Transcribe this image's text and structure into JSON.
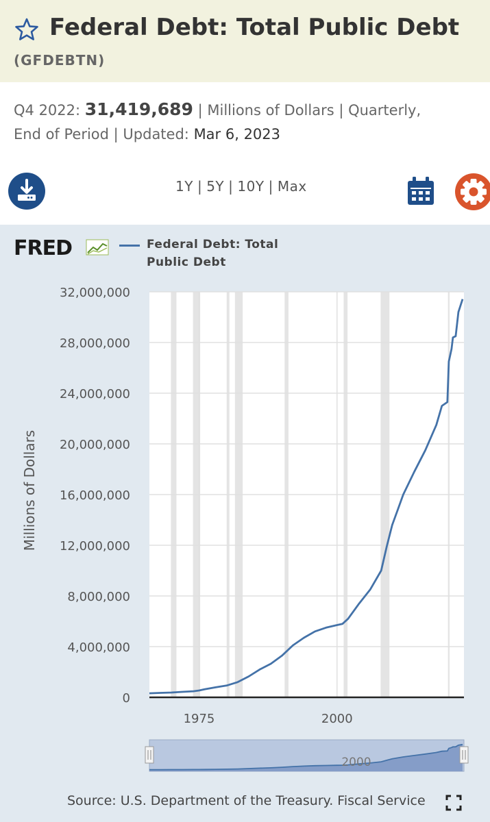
{
  "header": {
    "title": "Federal Debt: Total Public Debt",
    "series_id": "(GFDEBTN)",
    "bg_color": "#f2f2df",
    "star_icon": "star-outline-icon"
  },
  "meta": {
    "period_label": "Q4 2022:",
    "value": "31,419,689",
    "rest_line1": "| Millions of Dollars | Quarterly,",
    "rest_line2": "End of Period | Updated:",
    "updated": "Mar 6, 2023"
  },
  "toolbar": {
    "download_icon": "download-icon",
    "ranges": [
      "1Y",
      "5Y",
      "10Y",
      "Max"
    ],
    "calendar_icon": "calendar-icon",
    "settings_icon": "gear-icon"
  },
  "chart_data": {
    "type": "line",
    "logo_text": "FRED",
    "legend": [
      "Federal Debt: Total",
      "Public Debt"
    ],
    "series": [
      {
        "name": "Federal Debt: Total Public Debt",
        "color": "#4472a8",
        "x": [
          1966,
          1968,
          1970,
          1972,
          1974,
          1975,
          1976,
          1978,
          1980,
          1982,
          1984,
          1986,
          1988,
          1990,
          1992,
          1994,
          1996,
          1998,
          2000,
          2001,
          2002,
          2004,
          2006,
          2008,
          2009,
          2010,
          2011,
          2012,
          2014,
          2016,
          2018,
          2019,
          2020,
          2020.25,
          2020.75,
          2021,
          2021.5,
          2022,
          2022.75
        ],
        "y": [
          320000,
          350000,
          380000,
          430000,
          480000,
          540000,
          630000,
          790000,
          930000,
          1200000,
          1650000,
          2200000,
          2650000,
          3280000,
          4100000,
          4700000,
          5200000,
          5500000,
          5700000,
          5800000,
          6200000,
          7400000,
          8500000,
          10000000,
          11900000,
          13600000,
          14800000,
          16000000,
          17800000,
          19500000,
          21500000,
          23000000,
          23300000,
          26500000,
          27500000,
          28400000,
          28500000,
          30400000,
          31419689
        ]
      }
    ],
    "recessions": [
      [
        1969.9,
        1970.9
      ],
      [
        1973.9,
        1975.2
      ],
      [
        1980.0,
        1980.5
      ],
      [
        1981.5,
        1982.9
      ],
      [
        1990.5,
        1991.2
      ],
      [
        2001.2,
        2001.9
      ],
      [
        2007.9,
        2009.5
      ],
      [
        2020.1,
        2020.4
      ]
    ],
    "xlim": [
      1966,
      2023
    ],
    "ylim": [
      0,
      32000000
    ],
    "yticks": [
      0,
      4000000,
      8000000,
      12000000,
      16000000,
      20000000,
      24000000,
      28000000,
      32000000
    ],
    "ytick_labels": [
      "0",
      "4,000,000",
      "8,000,000",
      "12,000,000",
      "16,000,000",
      "20,000,000",
      "24,000,000",
      "28,000,000",
      "32,000,000"
    ],
    "xticks": [
      1975,
      2000
    ],
    "xtick_labels": [
      "1975",
      "2000"
    ],
    "ylabel": "Millions of Dollars",
    "xlabel": "",
    "grid": true,
    "navigator_label": "2000"
  },
  "source": "Source: U.S. Department of the Treasury. Fiscal Service",
  "fullscreen_icon": "fullscreen-icon"
}
